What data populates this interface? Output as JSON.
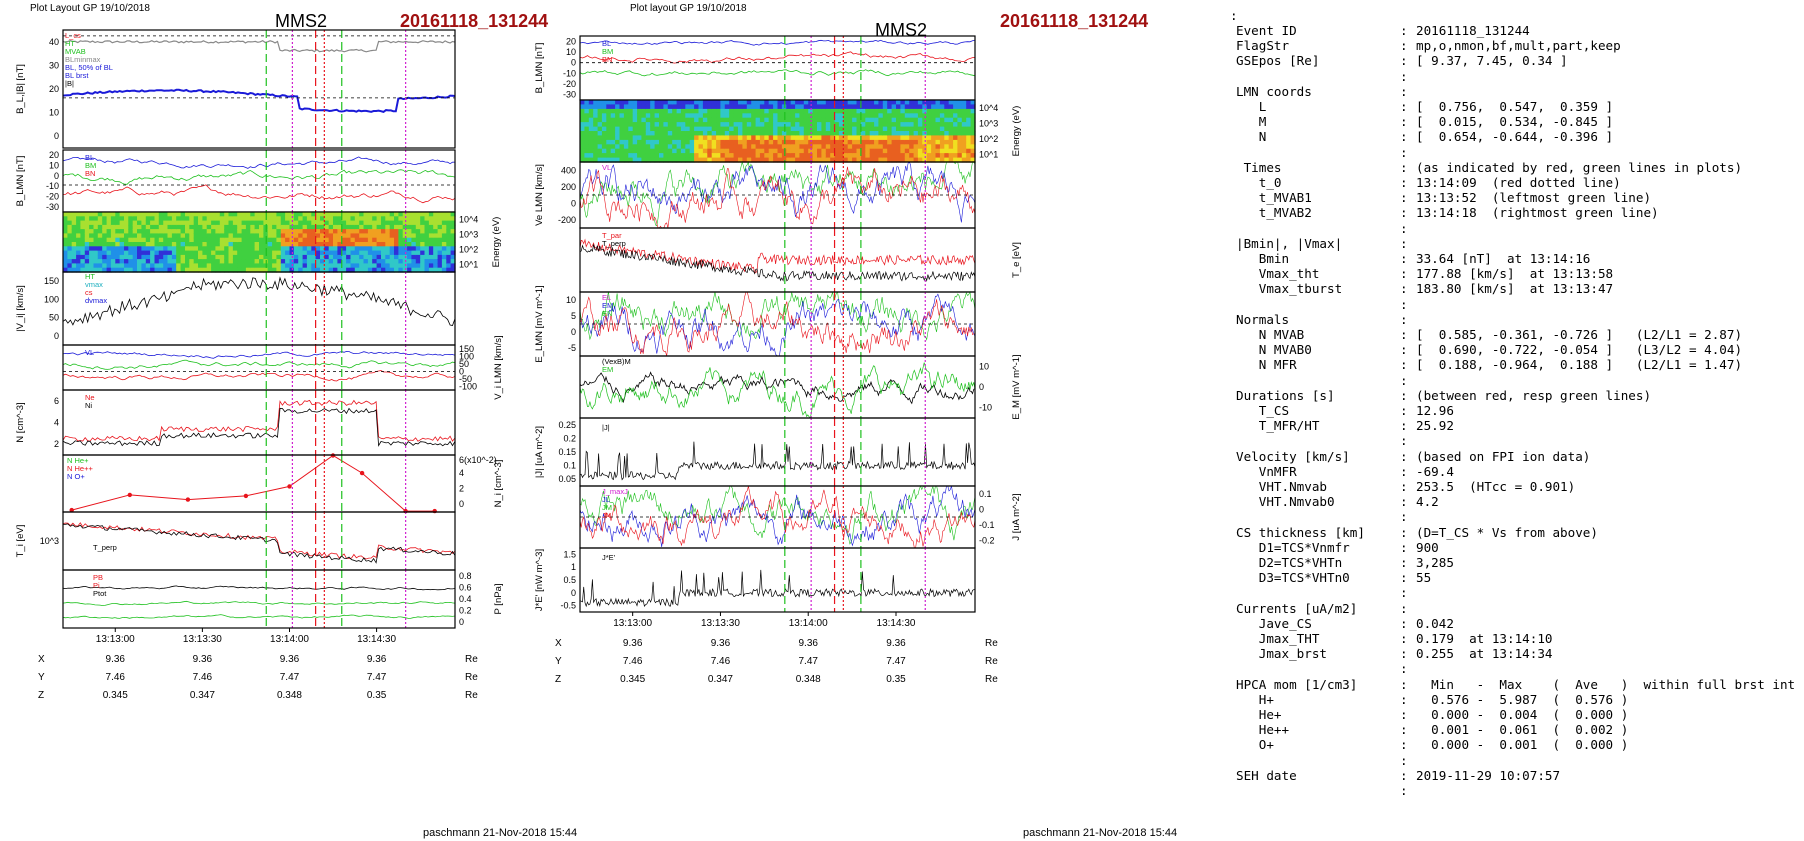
{
  "left_panel": {
    "header": "Plot Layout GP 19/10/2018",
    "spacecraft": "MMS2",
    "event": "20161118_131244",
    "footer": "paschmann 21-Nov-2018 15:44"
  },
  "middle_panel": {
    "header": "Plot layout GP 19/10/2018",
    "spacecraft": "MMS2",
    "event": "20161118_131244",
    "footer": "paschmann 21-Nov-2018 15:44"
  },
  "colors": {
    "black": "#000000",
    "red": "#e8141c",
    "green": "#1ec01e",
    "blue": "#1a1ad8",
    "magenta": "#d020d0",
    "title_red": "#a01010",
    "cyan": "#20b0c0"
  },
  "orbit_table": {
    "times": [
      "13:13:00",
      "13:13:30",
      "13:14:00",
      "13:14:30"
    ],
    "rows": [
      {
        "label": "X",
        "values": [
          "9.36",
          "9.36",
          "9.36",
          "9.36"
        ],
        "unit": "Re"
      },
      {
        "label": "Y",
        "values": [
          "7.46",
          "7.46",
          "7.47",
          "7.47"
        ],
        "unit": "Re"
      },
      {
        "label": "Z",
        "values": [
          "0.345",
          "0.347",
          "0.348",
          "0.35"
        ],
        "unit": "Re"
      }
    ]
  },
  "chart_data": [
    {
      "type": "line",
      "panel": "left-1",
      "ylabel": "B_L,|B| [nT]",
      "ylim": [
        0,
        40
      ],
      "legend": [
        "L_cs",
        "HT",
        "MVAB",
        "BLminmax",
        "BL, 50% of BL",
        "BL brst",
        "|B|"
      ],
      "series": [
        {
          "name": "|B|",
          "approx": "near 35-38 nT"
        },
        {
          "name": "BL brst",
          "approx": "17-20 nT, dip to 14 nT near 13:14:30"
        }
      ]
    },
    {
      "type": "line",
      "panel": "left-2",
      "ylabel": "B_LMN [nT]",
      "yticks": [
        20,
        10,
        0,
        -10,
        -20,
        -30
      ],
      "legend": [
        "BL",
        "BM",
        "BN"
      ]
    },
    {
      "type": "heatmap",
      "panel": "left-3",
      "ylabel": "Energy (eV)",
      "yticks": [
        "10^1",
        "10^2",
        "10^3",
        "10^4"
      ]
    },
    {
      "type": "line",
      "panel": "left-4",
      "ylabel": "|V_i| [km/s]",
      "yticks": [
        0,
        50,
        100,
        150
      ],
      "legend": [
        "HT",
        "vmax",
        "cs",
        "dvmax"
      ]
    },
    {
      "type": "line",
      "panel": "left-5",
      "ylabel": "V_i LMN [km/s]",
      "yticks": [
        150,
        100,
        50,
        0,
        -50,
        -100
      ],
      "legend": [
        "VL"
      ]
    },
    {
      "type": "line",
      "panel": "left-6",
      "ylabel": "N [cm^-3]",
      "yticks": [
        2,
        4,
        6
      ],
      "legend": [
        "Ne",
        "Ni"
      ]
    },
    {
      "type": "line",
      "panel": "left-7",
      "ylabel": "N_i [cm^-3]",
      "scale_label": "6(x10^-2)",
      "yticks": [
        0,
        2,
        4
      ],
      "legend": [
        "N He+",
        "N He++",
        "N O+"
      ],
      "series": [
        {
          "name": "N He++",
          "x": [
            "13:12:45",
            "13:13:05",
            "13:13:25",
            "13:13:45",
            "13:14:00",
            "13:14:15",
            "13:14:25",
            "13:14:40",
            "13:14:50"
          ],
          "values": [
            0.2,
            1.8,
            1.3,
            1.7,
            2.7,
            5.95,
            4.1,
            0.1,
            0.1
          ]
        }
      ]
    },
    {
      "type": "line",
      "panel": "left-8",
      "ylabel": "T_i [eV]",
      "yticks": [
        "10^3"
      ],
      "legend": [
        "T_perp"
      ]
    },
    {
      "type": "line",
      "panel": "left-9",
      "ylabel": "P [nPa]",
      "yticks": [
        0.0,
        0.2,
        0.4,
        0.6,
        0.8
      ],
      "legend": [
        "PB",
        "Pi",
        "Ptot"
      ]
    },
    {
      "type": "line",
      "panel": "mid-1",
      "ylabel": "B_LMN [nT]",
      "yticks": [
        20,
        10,
        0,
        -10,
        -20,
        -30
      ],
      "legend": [
        "BL",
        "BM",
        "BN"
      ]
    },
    {
      "type": "heatmap",
      "panel": "mid-2",
      "ylabel": "Energy (eV)",
      "yticks": [
        "10^1",
        "10^2",
        "10^3",
        "10^4"
      ]
    },
    {
      "type": "line",
      "panel": "mid-3",
      "ylabel": "Ve LMN [km/s]",
      "yticks": [
        400,
        200,
        0,
        -200
      ],
      "legend": [
        "VL"
      ]
    },
    {
      "type": "line",
      "panel": "mid-4",
      "ylabel": "T_e [eV]",
      "legend": [
        "T_par",
        "T_perp"
      ]
    },
    {
      "type": "line",
      "panel": "mid-5",
      "ylabel": "E_LMN [mV m^-1]",
      "yticks": [
        10,
        5,
        0,
        -5
      ],
      "legend": [
        "EL",
        "EM",
        "EN"
      ]
    },
    {
      "type": "line",
      "panel": "mid-6",
      "ylabel": "E_M [mV m^-1]",
      "yticks": [
        10,
        0,
        -10
      ],
      "legend": [
        "(VexB)M",
        "EM"
      ]
    },
    {
      "type": "line",
      "panel": "mid-7",
      "ylabel": "|J| [uA m^-2]",
      "yticks": [
        0.25,
        0.2,
        0.15,
        0.1,
        0.05
      ],
      "legend": [
        "|J|"
      ]
    },
    {
      "type": "line",
      "panel": "mid-8",
      "ylabel": "J [uA m^-2]",
      "yticks": [
        0.1,
        0.0,
        -0.1,
        -0.2
      ],
      "legend": [
        "J_maxJ",
        "JL",
        "JM",
        "JN"
      ]
    },
    {
      "type": "line",
      "panel": "mid-9",
      "ylabel": "J*E' [nW m^-3]",
      "yticks": [
        1.5,
        1.0,
        0.5,
        0.0,
        -0.5
      ],
      "legend": [
        "J*E'"
      ]
    }
  ],
  "info": {
    "leading_colon": ":",
    "rows": [
      {
        "label": "Event ID",
        "value": "20161118_131244"
      },
      {
        "label": "FlagStr",
        "value": "mp,o,nmon,bf,mult,part,keep"
      },
      {
        "label": "GSEpos [Re]",
        "value": "[ 9.37, 7.45, 0.34 ]"
      },
      {
        "label": "",
        "value": ""
      },
      {
        "label": "LMN coords",
        "value": ""
      },
      {
        "label": "   L",
        "value": "[  0.756,  0.547,  0.359 ]"
      },
      {
        "label": "   M",
        "value": "[  0.015,  0.534, -0.845 ]"
      },
      {
        "label": "   N",
        "value": "[  0.654, -0.644, -0.396 ]"
      },
      {
        "label": "",
        "value": ""
      },
      {
        "label": " Times",
        "value": "(as indicated by red, green lines in plots)"
      },
      {
        "label": "   t_0",
        "value": "13:14:09  (red dotted line)"
      },
      {
        "label": "   t_MVAB1",
        "value": "13:13:52  (leftmost green line)"
      },
      {
        "label": "   t_MVAB2",
        "value": "13:14:18  (rightmost green line)"
      },
      {
        "label": "",
        "value": ""
      },
      {
        "label": "|Bmin|, |Vmax|",
        "value": ""
      },
      {
        "label": "   Bmin",
        "value": "33.64 [nT]  at 13:14:16"
      },
      {
        "label": "   Vmax_tht",
        "value": "177.88 [km/s]  at 13:13:58"
      },
      {
        "label": "   Vmax_tburst",
        "value": "183.80 [km/s]  at 13:13:47"
      },
      {
        "label": "",
        "value": ""
      },
      {
        "label": "Normals",
        "value": ""
      },
      {
        "label": "   N MVAB",
        "value": "[  0.585, -0.361, -0.726 ]   (L2/L1 = 2.87)"
      },
      {
        "label": "   N MVAB0",
        "value": "[  0.690, -0.722, -0.054 ]   (L3/L2 = 4.04)"
      },
      {
        "label": "   N MFR",
        "value": "[  0.188, -0.964,  0.188 ]   (L2/L1 = 1.47)"
      },
      {
        "label": "",
        "value": ""
      },
      {
        "label": "Durations [s]",
        "value": "(between red, resp green lines)"
      },
      {
        "label": "   T_CS",
        "value": "12.96"
      },
      {
        "label": "   T_MFR/HT",
        "value": "25.92"
      },
      {
        "label": "",
        "value": ""
      },
      {
        "label": "Velocity [km/s]",
        "value": "(based on FPI ion data)"
      },
      {
        "label": "   VnMFR",
        "value": "-69.4"
      },
      {
        "label": "   VHT.Nmvab",
        "value": "253.5  (HTcc = 0.901)"
      },
      {
        "label": "   VHT.Nmvab0",
        "value": "4.2"
      },
      {
        "label": "",
        "value": ""
      },
      {
        "label": "CS thickness [km]",
        "value": "(D=T_CS * Vs from above)"
      },
      {
        "label": "   D1=TCS*Vnmfr",
        "value": "900"
      },
      {
        "label": "   D2=TCS*VHTn",
        "value": "3,285"
      },
      {
        "label": "   D3=TCS*VHTn0",
        "value": "55"
      },
      {
        "label": "",
        "value": ""
      },
      {
        "label": "Currents [uA/m2]",
        "value": ""
      },
      {
        "label": "   Jave_CS",
        "value": "0.042"
      },
      {
        "label": "   Jmax_THT",
        "value": "0.179  at 13:14:10"
      },
      {
        "label": "   Jmax_brst",
        "value": "0.255  at 13:14:34"
      },
      {
        "label": "",
        "value": ""
      },
      {
        "label": "HPCA mom [1/cm3]",
        "value": "  Min   -  Max    (  Ave   )  within full brst int"
      },
      {
        "label": "   H+",
        "value": "  0.576 -  5.987  (  0.576 )"
      },
      {
        "label": "   He+",
        "value": "  0.000 -  0.004  (  0.000 )"
      },
      {
        "label": "   He++",
        "value": "  0.001 -  0.061  (  0.002 )"
      },
      {
        "label": "   O+",
        "value": "  0.000 -  0.001  (  0.000 )"
      },
      {
        "label": "",
        "value": ""
      },
      {
        "label": "SEH date",
        "value": "2019-11-29 10:07:57"
      },
      {
        "label": "",
        "value": ""
      }
    ]
  }
}
